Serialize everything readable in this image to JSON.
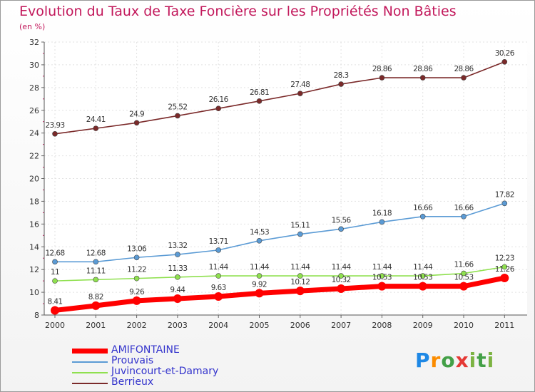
{
  "chart_data": {
    "type": "line",
    "title": "Evolution du Taux de Taxe Foncière sur les Propriétés Non Bâties",
    "subtitle": "(en %)",
    "categories": [
      "2000",
      "2001",
      "2002",
      "2003",
      "2004",
      "2005",
      "2006",
      "2007",
      "2008",
      "2009",
      "2010",
      "2011"
    ],
    "ylim": [
      8,
      32
    ],
    "yticks": [
      8,
      10,
      12,
      14,
      16,
      18,
      20,
      22,
      24,
      26,
      28,
      30,
      32
    ],
    "grid": true,
    "series": [
      {
        "name": "AMIFONTAINE",
        "color": "#ff0000",
        "values": [
          8.41,
          8.82,
          9.26,
          9.44,
          9.63,
          9.92,
          10.12,
          10.32,
          10.53,
          10.53,
          10.53,
          11.26
        ],
        "labels": [
          "8.41",
          "8.82",
          "9.26",
          "9.44",
          "9.63",
          "9.92",
          "10.12",
          "10.32",
          "10.53",
          "10.53",
          "10.53",
          "11.26"
        ]
      },
      {
        "name": "Prouvais",
        "color": "#5b9bd5",
        "values": [
          12.68,
          12.68,
          13.06,
          13.32,
          13.71,
          14.53,
          15.11,
          15.56,
          16.18,
          16.66,
          16.66,
          17.82
        ],
        "labels": [
          "12.68",
          "12.68",
          "13.06",
          "13.32",
          "13.71",
          "14.53",
          "15.11",
          "15.56",
          "16.18",
          "16.66",
          "16.66",
          "17.82"
        ]
      },
      {
        "name": "Juvincourt-et-Damary",
        "color": "#8fe04f",
        "values": [
          11,
          11.11,
          11.22,
          11.33,
          11.44,
          11.44,
          11.44,
          11.44,
          11.44,
          11.44,
          11.66,
          12.23
        ],
        "labels": [
          "11",
          "11.11",
          "11.22",
          "11.33",
          "11.44",
          "11.44",
          "11.44",
          "11.44",
          "11.44",
          "11.44",
          "11.66",
          "12.23"
        ]
      },
      {
        "name": "Berrieux",
        "color": "#7b2a2a",
        "values": [
          23.93,
          24.41,
          24.9,
          25.52,
          26.16,
          26.81,
          27.48,
          28.3,
          28.86,
          28.86,
          28.86,
          30.26
        ],
        "labels": [
          "23.93",
          "24.41",
          "24.9",
          "25.52",
          "26.16",
          "26.81",
          "27.48",
          "28.3",
          "28.86",
          "28.86",
          "28.86",
          "30.26"
        ]
      }
    ]
  },
  "logo": {
    "letters": [
      "P",
      "r",
      "o",
      "x",
      "i",
      "t",
      "i"
    ]
  }
}
